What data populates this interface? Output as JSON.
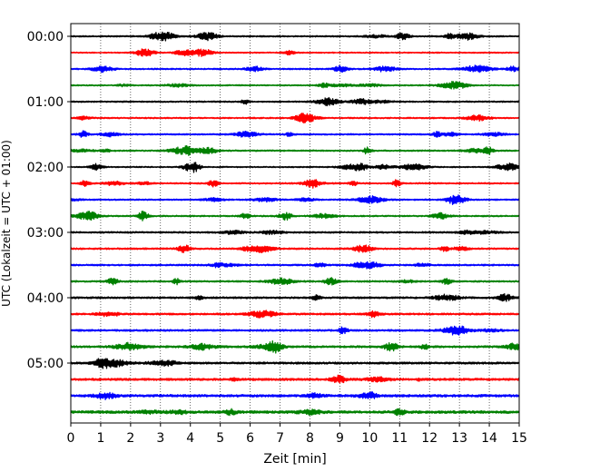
{
  "chart_data": {
    "type": "line",
    "title": "",
    "xlabel": "Zeit  [min]",
    "ylabel": "UTC (Lokalzeit = UTC + 01:00)",
    "xlim": [
      0,
      15
    ],
    "x_ticks": [
      "0",
      "1",
      "2",
      "3",
      "4",
      "5",
      "6",
      "7",
      "8",
      "9",
      "10",
      "11",
      "12",
      "13",
      "14",
      "15"
    ],
    "y_ticks": [
      "00:00",
      "01:00",
      "02:00",
      "03:00",
      "04:00",
      "05:00"
    ],
    "grid": "vertical dotted at each minute",
    "trace_interval_min": 15,
    "trace_count": 24,
    "trace_start_times": [
      "00:00",
      "00:15",
      "00:30",
      "00:45",
      "01:00",
      "01:15",
      "01:30",
      "01:45",
      "02:00",
      "02:15",
      "02:30",
      "02:45",
      "03:00",
      "03:15",
      "03:30",
      "03:45",
      "04:00",
      "04:15",
      "04:30",
      "04:45",
      "05:00",
      "05:15",
      "05:30",
      "05:45"
    ],
    "trace_colors": [
      "#000000",
      "#ff0000",
      "#0000ff",
      "#008000"
    ],
    "noise_level": [
      0.35,
      0.3,
      0.35,
      0.3,
      0.35,
      0.35,
      0.35,
      0.35,
      0.3,
      0.35,
      0.35,
      0.35,
      0.4,
      0.4,
      0.4,
      0.4,
      0.45,
      0.45,
      0.45,
      0.5,
      0.5,
      0.55,
      0.6,
      0.65
    ]
  }
}
